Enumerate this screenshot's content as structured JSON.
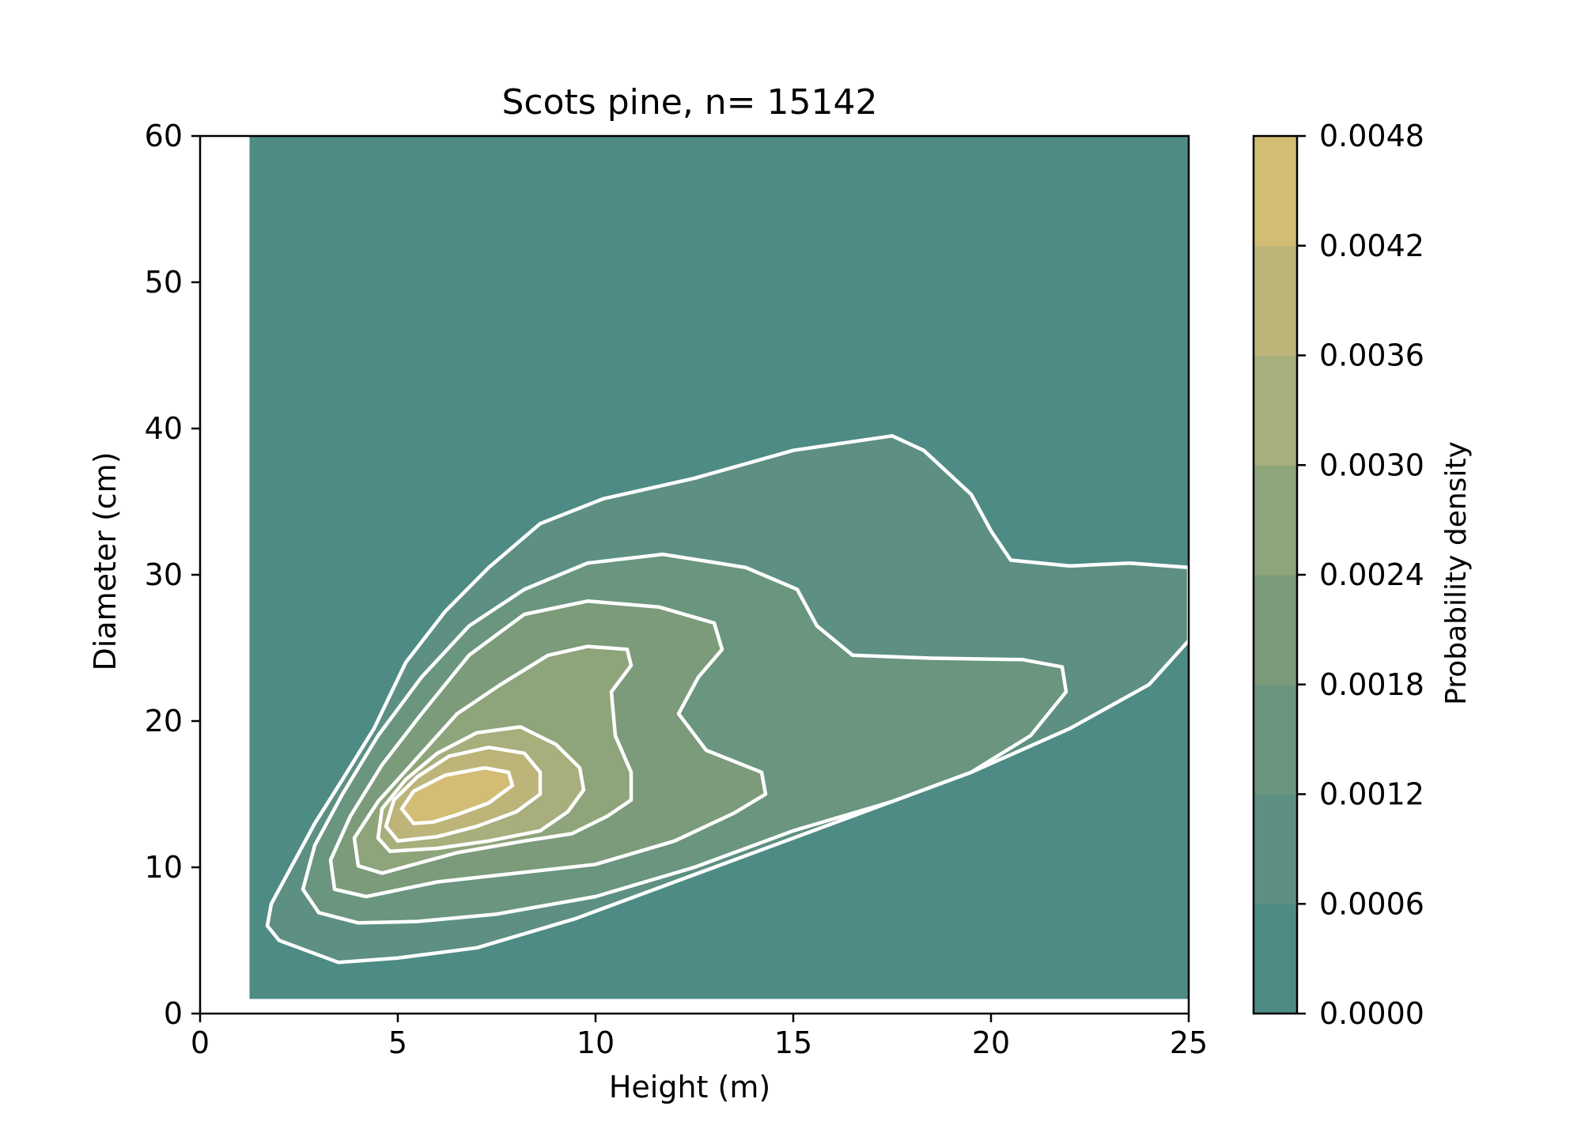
{
  "chart_data": {
    "type": "contour",
    "title": "Scots pine, n= 15142",
    "xlabel": "Height (m)",
    "ylabel": "Diameter (cm)",
    "xlim": [
      0,
      25
    ],
    "ylim": [
      0,
      60
    ],
    "xticks": [
      0,
      5,
      10,
      15,
      20,
      25
    ],
    "yticks": [
      0,
      10,
      20,
      30,
      40,
      50,
      60
    ],
    "grid": false,
    "data_extent": {
      "x": [
        1.25,
        25
      ],
      "y": [
        1,
        60
      ]
    },
    "colorbar": {
      "label": "Probability density",
      "levels": [
        0.0,
        0.0006,
        0.0012,
        0.0018,
        0.0024,
        0.003,
        0.0036,
        0.0042,
        0.0048
      ],
      "tick_labels": [
        "0.0000",
        "0.0006",
        "0.0012",
        "0.0018",
        "0.0024",
        "0.0030",
        "0.0036",
        "0.0042",
        "0.0048"
      ],
      "colors": [
        "#4e8b85",
        "#5d9082",
        "#6a957f",
        "#7b9b7b",
        "#8ea47b",
        "#a8ae7c",
        "#bdb47a",
        "#d3bc74",
        "#e8c26a"
      ]
    },
    "contour_line_color": "#ffffff",
    "peak": {
      "x": 6.5,
      "y": 14.5
    },
    "contours": [
      {
        "level": 0.0006,
        "points": [
          [
            3.5,
            3.5
          ],
          [
            2.8,
            4.2
          ],
          [
            2.0,
            5.0
          ],
          [
            1.7,
            6.0
          ],
          [
            1.8,
            7.5
          ],
          [
            2.3,
            10
          ],
          [
            2.9,
            13
          ],
          [
            3.6,
            16
          ],
          [
            4.4,
            19.5
          ],
          [
            5.2,
            24
          ],
          [
            6.2,
            27.5
          ],
          [
            7.3,
            30.5
          ],
          [
            8.6,
            33.5
          ],
          [
            10.2,
            35.2
          ],
          [
            12.5,
            36.6
          ],
          [
            15.0,
            38.5
          ],
          [
            17.5,
            39.5
          ],
          [
            18.3,
            38.5
          ],
          [
            19.5,
            35.5
          ],
          [
            20.0,
            33.0
          ],
          [
            20.5,
            31.0
          ],
          [
            22.0,
            30.6
          ],
          [
            23.5,
            30.8
          ],
          [
            25.0,
            30.5
          ],
          [
            25.0,
            25.5
          ],
          [
            24.0,
            22.5
          ],
          [
            22.0,
            19.5
          ],
          [
            19.5,
            16.5
          ],
          [
            17.0,
            14.0
          ],
          [
            14.5,
            11.5
          ],
          [
            12.0,
            9.0
          ],
          [
            9.5,
            6.5
          ],
          [
            7.0,
            4.5
          ],
          [
            5.0,
            3.8
          ]
        ]
      },
      {
        "level": 0.0012,
        "points": [
          [
            4.0,
            6.2
          ],
          [
            3.0,
            6.9
          ],
          [
            2.6,
            8.5
          ],
          [
            2.9,
            11.5
          ],
          [
            3.6,
            15.0
          ],
          [
            4.5,
            19.0
          ],
          [
            5.6,
            23.0
          ],
          [
            6.8,
            26.5
          ],
          [
            8.2,
            29.0
          ],
          [
            9.8,
            30.8
          ],
          [
            11.7,
            31.4
          ],
          [
            13.8,
            30.5
          ],
          [
            15.1,
            29.0
          ],
          [
            15.6,
            26.5
          ],
          [
            16.5,
            24.5
          ],
          [
            18.5,
            24.3
          ],
          [
            20.8,
            24.2
          ],
          [
            21.8,
            23.7
          ],
          [
            21.9,
            22.0
          ],
          [
            21.0,
            19.0
          ],
          [
            19.5,
            16.5
          ],
          [
            17.5,
            14.5
          ],
          [
            15.0,
            12.5
          ],
          [
            12.5,
            10.0
          ],
          [
            10.0,
            8.0
          ],
          [
            7.5,
            6.8
          ],
          [
            5.5,
            6.3
          ]
        ]
      },
      {
        "level": 0.0018,
        "points": [
          [
            4.2,
            8.0
          ],
          [
            3.4,
            8.5
          ],
          [
            3.3,
            10.5
          ],
          [
            3.8,
            13.5
          ],
          [
            4.6,
            17.0
          ],
          [
            5.6,
            20.5
          ],
          [
            6.8,
            24.5
          ],
          [
            8.2,
            27.3
          ],
          [
            9.8,
            28.2
          ],
          [
            11.6,
            27.8
          ],
          [
            13.0,
            26.7
          ],
          [
            13.2,
            24.9
          ],
          [
            12.6,
            23.0
          ],
          [
            12.1,
            20.5
          ],
          [
            12.8,
            18.0
          ],
          [
            14.2,
            16.5
          ],
          [
            14.3,
            15.0
          ],
          [
            13.5,
            13.7
          ],
          [
            12.0,
            11.8
          ],
          [
            10.0,
            10.2
          ],
          [
            8.0,
            9.6
          ],
          [
            6.0,
            9.0
          ]
        ]
      },
      {
        "level": 0.0024,
        "points": [
          [
            4.6,
            9.6
          ],
          [
            4.0,
            10.1
          ],
          [
            3.9,
            12.0
          ],
          [
            4.5,
            14.5
          ],
          [
            5.5,
            17.5
          ],
          [
            6.5,
            20.5
          ],
          [
            7.6,
            22.5
          ],
          [
            8.8,
            24.5
          ],
          [
            9.8,
            25.1
          ],
          [
            10.8,
            24.9
          ],
          [
            10.9,
            23.8
          ],
          [
            10.4,
            22.0
          ],
          [
            10.5,
            19.0
          ],
          [
            10.9,
            16.5
          ],
          [
            10.9,
            14.6
          ],
          [
            10.3,
            13.5
          ],
          [
            9.4,
            12.3
          ],
          [
            8.2,
            11.8
          ],
          [
            6.5,
            11.0
          ]
        ]
      },
      {
        "level": 0.003,
        "points": [
          [
            4.8,
            11.1
          ],
          [
            4.5,
            12.0
          ],
          [
            4.6,
            14.0
          ],
          [
            5.2,
            16.0
          ],
          [
            6.0,
            17.8
          ],
          [
            7.0,
            19.2
          ],
          [
            8.1,
            19.6
          ],
          [
            9.0,
            18.4
          ],
          [
            9.6,
            16.8
          ],
          [
            9.7,
            15.3
          ],
          [
            9.3,
            13.8
          ],
          [
            8.6,
            12.5
          ],
          [
            7.3,
            11.8
          ],
          [
            6.0,
            11.3
          ]
        ]
      },
      {
        "level": 0.0036,
        "points": [
          [
            5.0,
            11.8
          ],
          [
            4.7,
            12.8
          ],
          [
            4.9,
            14.6
          ],
          [
            5.5,
            16.2
          ],
          [
            6.3,
            17.6
          ],
          [
            7.3,
            18.2
          ],
          [
            8.2,
            17.8
          ],
          [
            8.6,
            16.5
          ],
          [
            8.6,
            15.0
          ],
          [
            8.0,
            13.8
          ],
          [
            7.0,
            12.8
          ],
          [
            6.0,
            12.1
          ]
        ]
      },
      {
        "level": 0.0042,
        "points": [
          [
            5.4,
            13.0
          ],
          [
            5.1,
            14.0
          ],
          [
            5.4,
            15.2
          ],
          [
            6.2,
            16.3
          ],
          [
            7.2,
            16.8
          ],
          [
            7.8,
            16.5
          ],
          [
            7.9,
            15.6
          ],
          [
            7.3,
            14.4
          ],
          [
            6.5,
            13.6
          ],
          [
            5.9,
            13.1
          ]
        ]
      },
      {
        "level": 0.0045,
        "points": [
          [
            5.8,
            13.4
          ],
          [
            5.5,
            14.3
          ],
          [
            6.0,
            15.3
          ],
          [
            6.8,
            15.9
          ],
          [
            7.5,
            15.9
          ],
          [
            7.6,
            15.2
          ],
          [
            7.0,
            14.3
          ],
          [
            6.4,
            13.7
          ]
        ]
      }
    ]
  }
}
